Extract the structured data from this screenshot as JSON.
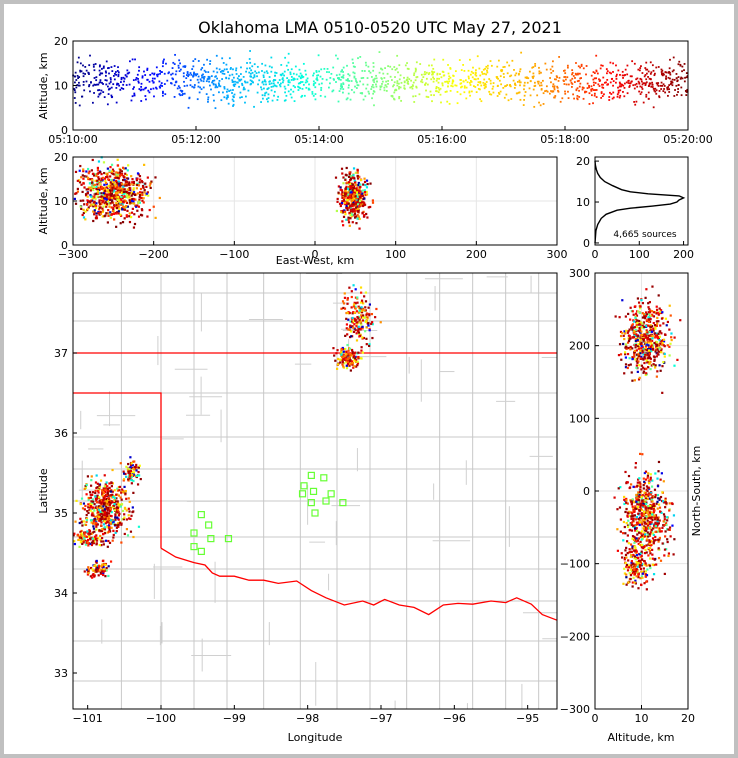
{
  "figure": {
    "title": "Oklahoma LMA 0510-0520 UTC May 27, 2021"
  },
  "chart_data": [
    {
      "id": "time_height",
      "type": "scatter",
      "title": "",
      "xlabel": "",
      "ylabel": "Altitude, km",
      "x_tick_labels": [
        "05:10:00",
        "05:12:00",
        "05:14:00",
        "05:16:00",
        "05:18:00",
        "05:20:00"
      ],
      "x_range_minutes": [
        0,
        10
      ],
      "ylim": [
        0,
        20
      ],
      "y_ticks": [
        0,
        10,
        20
      ],
      "color_by": "time",
      "color_scale": [
        "#000080",
        "#0000ff",
        "#00aaff",
        "#00ffdd",
        "#80ff80",
        "#ffff00",
        "#ffaa00",
        "#ff0000",
        "#800000"
      ],
      "series": [
        {
          "x_min": 0.0,
          "x_max": 10.0,
          "alt_center": 11.0,
          "alt_spread": 2.5
        }
      ]
    },
    {
      "id": "ew_height",
      "type": "scatter",
      "xlabel": "East-West, km",
      "ylabel": "Altitude, km",
      "xlim": [
        -300,
        300
      ],
      "x_ticks": [
        -300,
        -200,
        -100,
        0,
        100,
        200,
        300
      ],
      "ylim": [
        0,
        20
      ],
      "y_ticks": [
        0,
        10,
        20
      ],
      "clusters": [
        {
          "x_center": -250,
          "x_spread": 30,
          "alt_center": 12,
          "alt_spread": 4
        },
        {
          "x_center": 48,
          "x_spread": 12,
          "alt_center": 11,
          "alt_spread": 3.5
        }
      ]
    },
    {
      "id": "alt_histogram",
      "type": "line",
      "xlim": [
        0,
        210
      ],
      "x_ticks": [
        0,
        100,
        200
      ],
      "ylim": [
        -0.5,
        21
      ],
      "y_ticks": [
        0,
        10,
        20
      ],
      "annotation": "4,665 sources",
      "profile": [
        {
          "alt": 0.0,
          "count": 0
        },
        {
          "alt": 3.0,
          "count": 2
        },
        {
          "alt": 4.5,
          "count": 6
        },
        {
          "alt": 6.0,
          "count": 14
        },
        {
          "alt": 7.0,
          "count": 25
        },
        {
          "alt": 8.0,
          "count": 50
        },
        {
          "alt": 8.5,
          "count": 80
        },
        {
          "alt": 9.0,
          "count": 130
        },
        {
          "alt": 9.5,
          "count": 170
        },
        {
          "alt": 10.0,
          "count": 185
        },
        {
          "alt": 10.5,
          "count": 190
        },
        {
          "alt": 11.0,
          "count": 200
        },
        {
          "alt": 11.5,
          "count": 190
        },
        {
          "alt": 12.0,
          "count": 120
        },
        {
          "alt": 12.5,
          "count": 80
        },
        {
          "alt": 13.0,
          "count": 60
        },
        {
          "alt": 14.0,
          "count": 40
        },
        {
          "alt": 15.0,
          "count": 22
        },
        {
          "alt": 16.0,
          "count": 12
        },
        {
          "alt": 17.0,
          "count": 6
        },
        {
          "alt": 18.0,
          "count": 3
        },
        {
          "alt": 19.0,
          "count": 1
        },
        {
          "alt": 20.0,
          "count": 0
        }
      ]
    },
    {
      "id": "plan_view",
      "type": "scatter",
      "xlabel": "Longitude",
      "ylabel": "Latitude",
      "xlim": [
        -101.2,
        -94.6
      ],
      "x_ticks": [
        -101,
        -100,
        -99,
        -98,
        -97,
        -96,
        -95
      ],
      "ylim": [
        32.55,
        38.0
      ],
      "y_ticks": [
        33,
        34,
        35,
        36,
        37
      ],
      "ks_ok_border_lat": 37.0,
      "panhandle_east_lon": -100.0,
      "panhandle_south_lat": 36.5,
      "red_river": [
        [
          -100.0,
          34.56
        ],
        [
          -99.8,
          34.45
        ],
        [
          -99.55,
          34.38
        ],
        [
          -99.4,
          34.35
        ],
        [
          -99.3,
          34.25
        ],
        [
          -99.2,
          34.21
        ],
        [
          -99.0,
          34.21
        ],
        [
          -98.8,
          34.16
        ],
        [
          -98.6,
          34.16
        ],
        [
          -98.4,
          34.12
        ],
        [
          -98.15,
          34.15
        ],
        [
          -97.95,
          34.03
        ],
        [
          -97.75,
          33.94
        ],
        [
          -97.5,
          33.85
        ],
        [
          -97.25,
          33.9
        ],
        [
          -97.1,
          33.85
        ],
        [
          -96.95,
          33.92
        ],
        [
          -96.75,
          33.85
        ],
        [
          -96.55,
          33.82
        ],
        [
          -96.35,
          33.73
        ],
        [
          -96.15,
          33.85
        ],
        [
          -95.95,
          33.87
        ],
        [
          -95.75,
          33.86
        ],
        [
          -95.5,
          33.9
        ],
        [
          -95.3,
          33.88
        ],
        [
          -95.15,
          33.94
        ],
        [
          -94.95,
          33.86
        ],
        [
          -94.8,
          33.73
        ],
        [
          -94.6,
          33.66
        ]
      ],
      "clusters": [
        {
          "lon": -97.3,
          "lat": 37.45,
          "dlon": 0.18,
          "dlat": 0.25
        },
        {
          "lon": -97.45,
          "lat": 36.95,
          "dlon": 0.15,
          "dlat": 0.12
        },
        {
          "lon": -100.75,
          "lat": 35.05,
          "dlon": 0.25,
          "dlat": 0.3
        },
        {
          "lon": -100.4,
          "lat": 35.5,
          "dlon": 0.1,
          "dlat": 0.12
        },
        {
          "lon": -101.0,
          "lat": 34.68,
          "dlon": 0.2,
          "dlat": 0.08
        },
        {
          "lon": -100.85,
          "lat": 34.3,
          "dlon": 0.12,
          "dlat": 0.1
        }
      ],
      "stations": [
        [
          -99.45,
          34.98
        ],
        [
          -99.35,
          34.85
        ],
        [
          -99.55,
          34.75
        ],
        [
          -99.32,
          34.68
        ],
        [
          -99.08,
          34.68
        ],
        [
          -99.55,
          34.58
        ],
        [
          -99.45,
          34.52
        ],
        [
          -97.95,
          35.47
        ],
        [
          -98.05,
          35.34
        ],
        [
          -97.78,
          35.44
        ],
        [
          -97.92,
          35.27
        ],
        [
          -98.07,
          35.24
        ],
        [
          -97.68,
          35.24
        ],
        [
          -97.95,
          35.13
        ],
        [
          -97.75,
          35.15
        ],
        [
          -97.52,
          35.13
        ],
        [
          -97.9,
          35.0
        ]
      ]
    },
    {
      "id": "ns_height",
      "type": "scatter",
      "xlabel": "Altitude, km",
      "ylabel": "North-South, km",
      "xlim": [
        0,
        20
      ],
      "x_ticks": [
        0,
        10,
        20
      ],
      "ylim": [
        -300,
        300
      ],
      "y_ticks": [
        -300,
        -200,
        -100,
        0,
        100,
        200,
        300
      ],
      "clusters": [
        {
          "ns_center": 210,
          "ns_spread": 45,
          "alt_center": 11,
          "alt_spread": 3.5
        },
        {
          "ns_center": -35,
          "ns_spread": 55,
          "alt_center": 11,
          "alt_spread": 3.5
        },
        {
          "ns_center": -105,
          "ns_spread": 25,
          "alt_center": 9,
          "alt_spread": 2
        }
      ]
    }
  ]
}
